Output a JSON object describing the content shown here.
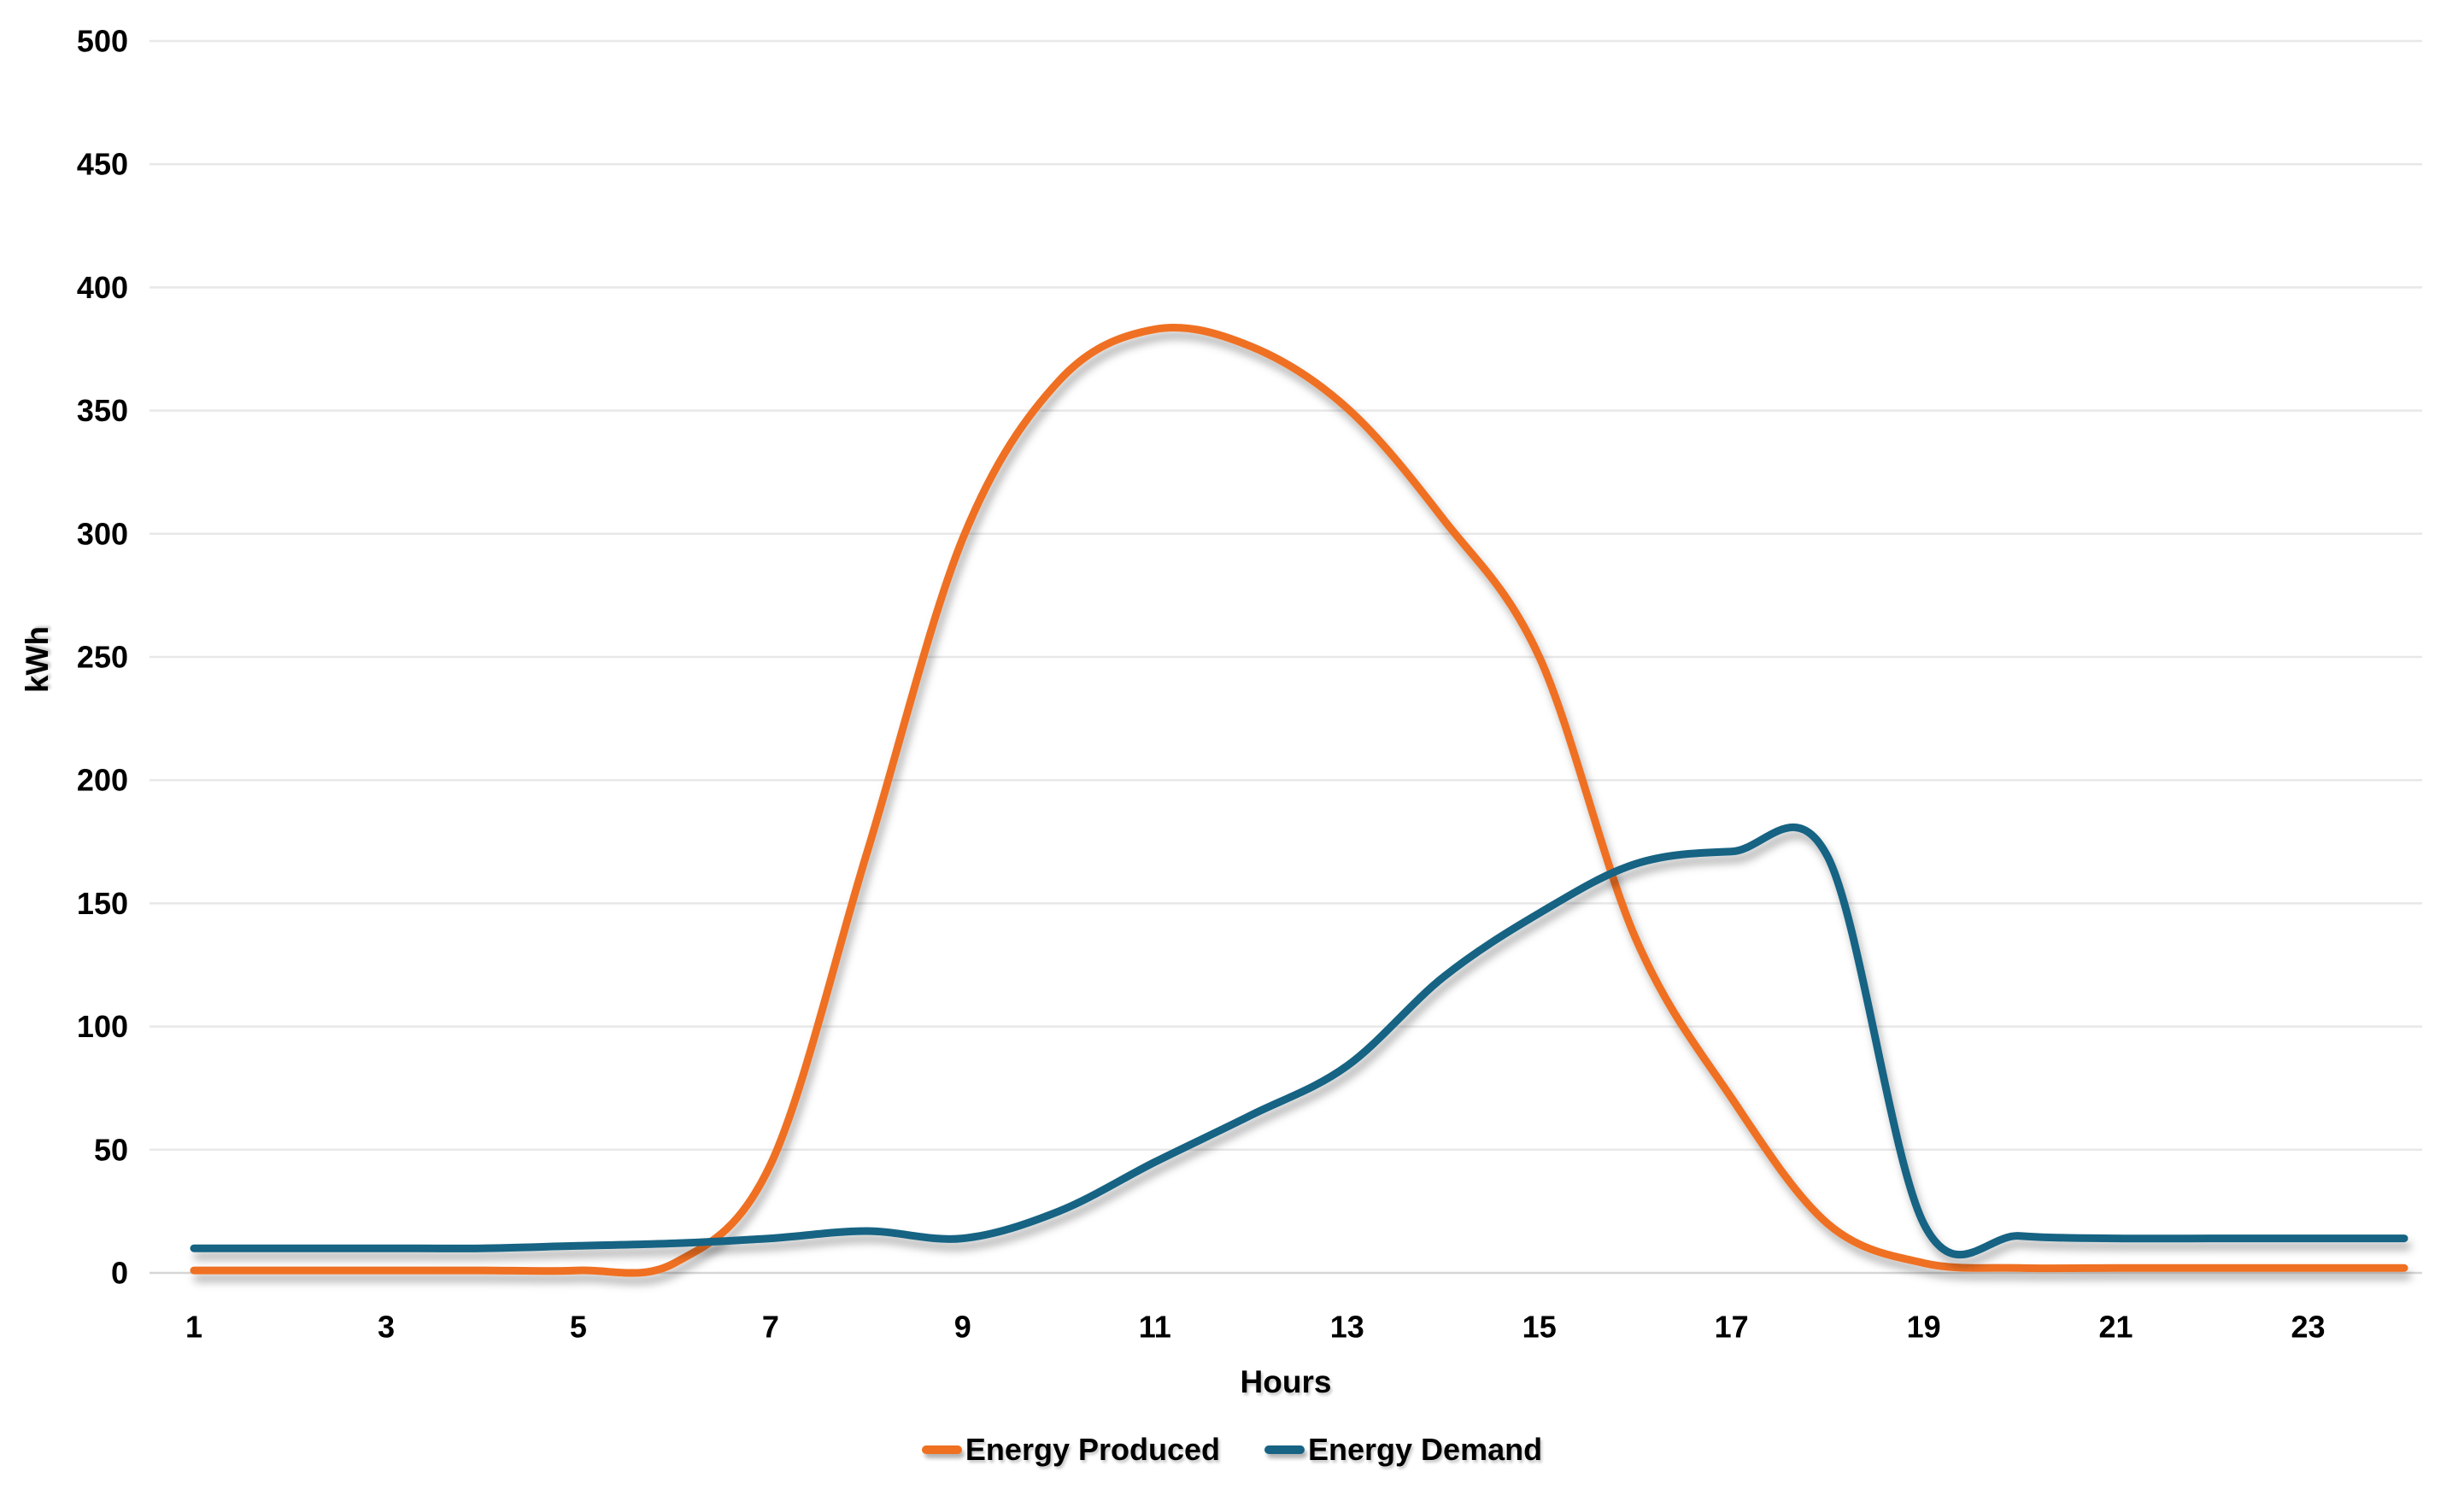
{
  "chart_data": {
    "type": "line",
    "title": "",
    "xlabel": "Hours",
    "ylabel": "kWh",
    "smooth": true,
    "grid": "horizontal",
    "legend_position": "bottom",
    "background_color": "#ffffff",
    "gridline_color": "#e8e8e8",
    "axisline_color": "#d6d6d6",
    "text_color": "#000000",
    "xlim": [
      1,
      24
    ],
    "ylim": [
      0,
      500
    ],
    "y_tick_step": 50,
    "y_ticks": [
      0,
      50,
      100,
      150,
      200,
      250,
      300,
      350,
      400,
      450,
      500
    ],
    "x_ticks": [
      1,
      3,
      5,
      7,
      9,
      11,
      13,
      15,
      17,
      19,
      21,
      23
    ],
    "x": [
      1,
      2,
      3,
      4,
      5,
      6,
      7,
      8,
      9,
      10,
      11,
      12,
      13,
      14,
      15,
      16,
      17,
      18,
      19,
      20,
      21,
      22,
      23,
      24
    ],
    "series": [
      {
        "name": "Energy Produced",
        "color": "#EF7020",
        "values": [
          1,
          1,
          1,
          1,
          1,
          4,
          44,
          170,
          298,
          362,
          383,
          376,
          351,
          306,
          250,
          136,
          71,
          20,
          4,
          2,
          2,
          2,
          2,
          2
        ]
      },
      {
        "name": "Energy Demand",
        "color": "#166383",
        "values": [
          10,
          10,
          10,
          10,
          11,
          12,
          14,
          17,
          14,
          25,
          45,
          64,
          84,
          120,
          146,
          166,
          171,
          169,
          20,
          15,
          14,
          14,
          14,
          14
        ]
      }
    ]
  }
}
